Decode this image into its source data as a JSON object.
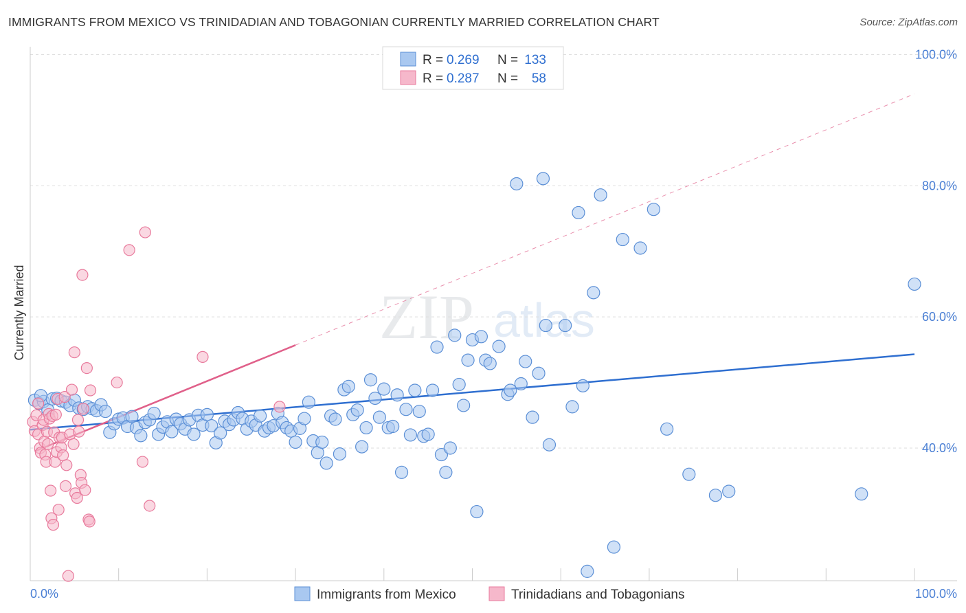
{
  "header": {
    "title": "IMMIGRANTS FROM MEXICO VS TRINIDADIAN AND TOBAGONIAN CURRENTLY MARRIED CORRELATION CHART",
    "source": "Source: ZipAtlas.com"
  },
  "watermark": {
    "zip": "ZIP",
    "atlas": "atlas"
  },
  "legend": {
    "r_label": "R =",
    "n_label": "N =",
    "rows": [
      {
        "r": "0.269",
        "n": "133"
      },
      {
        "r": "0.287",
        "n": "58"
      }
    ]
  },
  "colors": {
    "blue_fill": "#a9c8f0",
    "blue_stroke": "#5b8fd6",
    "blue_line": "#2f6fd0",
    "pink_fill": "#f6b8cb",
    "pink_stroke": "#e87a9c",
    "pink_line": "#e0608a",
    "tick_text": "#4a7fd4",
    "grid": "#dddddd"
  },
  "chart_data": {
    "type": "scatter",
    "title": "IMMIGRANTS FROM MEXICO VS TRINIDADIAN AND TOBAGONIAN CURRENTLY MARRIED CORRELATION CHART",
    "xlabel": "",
    "ylabel": "Currently Married",
    "xlim": [
      0,
      100
    ],
    "ylim": [
      20,
      102
    ],
    "x_tick_labels": [
      "0.0%",
      "100.0%"
    ],
    "y_ticks": [
      40,
      60,
      80,
      100
    ],
    "y_tick_labels": [
      "40.0%",
      "60.0%",
      "80.0%",
      "100.0%"
    ],
    "grid": true,
    "legend_position": "top-center",
    "series": [
      {
        "name": "Immigrants from Mexico",
        "color": "#a9c8f0",
        "r": 0.269,
        "n": 133,
        "trend": {
          "x": [
            0,
            100
          ],
          "y": [
            42.8,
            54.3
          ],
          "style": "solid"
        },
        "points": [
          [
            0.5,
            47.3
          ],
          [
            1,
            46.8
          ],
          [
            1.5,
            47.1
          ],
          [
            2,
            45.8
          ],
          [
            2.5,
            47.5
          ],
          [
            3,
            47.6
          ],
          [
            3.5,
            47.2
          ],
          [
            4,
            47.0
          ],
          [
            4.5,
            46.5
          ],
          [
            5,
            47.3
          ],
          [
            5.5,
            46.1
          ],
          [
            6,
            45.9
          ],
          [
            6.5,
            46.3
          ],
          [
            7,
            46.0
          ],
          [
            7.5,
            45.7
          ],
          [
            8,
            46.6
          ],
          [
            8.5,
            45.6
          ],
          [
            9,
            42.4
          ],
          [
            9.5,
            43.7
          ],
          [
            10,
            44.4
          ],
          [
            10.5,
            44.6
          ],
          [
            11,
            43.3
          ],
          [
            11.5,
            44.8
          ],
          [
            12,
            43.1
          ],
          [
            12.5,
            41.9
          ],
          [
            13,
            43.9
          ],
          [
            13.5,
            44.3
          ],
          [
            14,
            45.3
          ],
          [
            14.5,
            42.1
          ],
          [
            15,
            43.2
          ],
          [
            15.5,
            44.0
          ],
          [
            16,
            42.5
          ],
          [
            16.5,
            44.4
          ],
          [
            17,
            43.7
          ],
          [
            17.5,
            42.9
          ],
          [
            18,
            44.3
          ],
          [
            18.5,
            42.1
          ],
          [
            19,
            45.0
          ],
          [
            19.5,
            43.5
          ],
          [
            20,
            45.1
          ],
          [
            20.5,
            43.4
          ],
          [
            21,
            40.8
          ],
          [
            21.5,
            42.3
          ],
          [
            22,
            44.1
          ],
          [
            22.5,
            43.6
          ],
          [
            23,
            44.3
          ],
          [
            23.5,
            45.4
          ],
          [
            24,
            44.5
          ],
          [
            24.5,
            42.9
          ],
          [
            25,
            44.1
          ],
          [
            25.5,
            43.5
          ],
          [
            26,
            44.9
          ],
          [
            26.5,
            42.6
          ],
          [
            27,
            43.1
          ],
          [
            27.5,
            43.4
          ],
          [
            28,
            45.3
          ],
          [
            28.5,
            43.9
          ],
          [
            29,
            43.1
          ],
          [
            29.5,
            42.6
          ],
          [
            30,
            40.9
          ],
          [
            30.5,
            43.0
          ],
          [
            31,
            44.5
          ],
          [
            31.5,
            47.0
          ],
          [
            32,
            41.1
          ],
          [
            32.5,
            39.3
          ],
          [
            33,
            40.9
          ],
          [
            33.5,
            37.7
          ],
          [
            34,
            44.9
          ],
          [
            34.5,
            44.4
          ],
          [
            35,
            39.1
          ],
          [
            35.5,
            48.9
          ],
          [
            36,
            49.4
          ],
          [
            36.5,
            45.1
          ],
          [
            37,
            45.8
          ],
          [
            37.5,
            40.2
          ],
          [
            38,
            43.1
          ],
          [
            38.5,
            50.4
          ],
          [
            39,
            47.6
          ],
          [
            39.5,
            44.7
          ],
          [
            40,
            49.0
          ],
          [
            40.5,
            43.1
          ],
          [
            41,
            43.3
          ],
          [
            41.5,
            48.1
          ],
          [
            42,
            36.3
          ],
          [
            42.5,
            45.9
          ],
          [
            43,
            42.0
          ],
          [
            43.5,
            48.8
          ],
          [
            44,
            45.6
          ],
          [
            44.5,
            41.8
          ],
          [
            45,
            42.1
          ],
          [
            45.5,
            48.8
          ],
          [
            46,
            55.4
          ],
          [
            46.5,
            39.0
          ],
          [
            47,
            36.3
          ],
          [
            47.5,
            40.0
          ],
          [
            48,
            57.2
          ],
          [
            48.5,
            49.7
          ],
          [
            49,
            46.5
          ],
          [
            49.5,
            53.4
          ],
          [
            50,
            56.5
          ],
          [
            50.5,
            30.3
          ],
          [
            51,
            57.0
          ],
          [
            51.5,
            53.4
          ],
          [
            52,
            52.9
          ],
          [
            53,
            55.5
          ],
          [
            54,
            48.2
          ],
          [
            54.3,
            48.8
          ],
          [
            55,
            80.3
          ],
          [
            55.5,
            49.8
          ],
          [
            56,
            53.2
          ],
          [
            56.8,
            44.7
          ],
          [
            57.5,
            51.4
          ],
          [
            58,
            81.1
          ],
          [
            58.3,
            58.7
          ],
          [
            58.7,
            40.5
          ],
          [
            60.5,
            58.7
          ],
          [
            61.3,
            46.3
          ],
          [
            62,
            75.9
          ],
          [
            62.5,
            49.5
          ],
          [
            63,
            21.2
          ],
          [
            63.7,
            63.7
          ],
          [
            64.5,
            78.6
          ],
          [
            66,
            24.9
          ],
          [
            67,
            71.8
          ],
          [
            69,
            70.5
          ],
          [
            70.5,
            76.4
          ],
          [
            72,
            42.9
          ],
          [
            74.5,
            36.0
          ],
          [
            77.5,
            32.8
          ],
          [
            79,
            33.4
          ],
          [
            94,
            33.0
          ],
          [
            100,
            65.0
          ],
          [
            1.2,
            48.0
          ]
        ]
      },
      {
        "name": "Trinidadians and Tobagonians",
        "color": "#f6b8cb",
        "r": 0.287,
        "n": 58,
        "trend": {
          "x": [
            0.5,
            30
          ],
          "y": [
            39.5,
            55.7
          ],
          "style": "solid"
        },
        "trend_extension": {
          "x": [
            30,
            100
          ],
          "y": [
            55.7,
            94.0
          ],
          "style": "dashed"
        },
        "points": [
          [
            0.3,
            44.0
          ],
          [
            0.5,
            42.6
          ],
          [
            0.7,
            45.0
          ],
          [
            0.9,
            42.1
          ],
          [
            1.1,
            40.0
          ],
          [
            1.2,
            39.3
          ],
          [
            1.4,
            43.5
          ],
          [
            1.5,
            44.3
          ],
          [
            1.6,
            41.0
          ],
          [
            1.7,
            39.0
          ],
          [
            1.8,
            37.9
          ],
          [
            1.9,
            42.5
          ],
          [
            2.0,
            40.6
          ],
          [
            2.1,
            45.2
          ],
          [
            2.2,
            44.5
          ],
          [
            2.3,
            33.5
          ],
          [
            2.4,
            29.3
          ],
          [
            2.5,
            44.9
          ],
          [
            2.6,
            28.3
          ],
          [
            2.7,
            42.4
          ],
          [
            2.8,
            37.9
          ],
          [
            2.9,
            45.1
          ],
          [
            3.0,
            39.4
          ],
          [
            3.1,
            47.5
          ],
          [
            3.2,
            30.6
          ],
          [
            3.3,
            41.6
          ],
          [
            3.5,
            40.1
          ],
          [
            3.6,
            41.6
          ],
          [
            3.7,
            38.9
          ],
          [
            3.9,
            47.8
          ],
          [
            4.0,
            34.2
          ],
          [
            4.1,
            37.4
          ],
          [
            4.3,
            20.5
          ],
          [
            4.5,
            42.1
          ],
          [
            4.7,
            48.9
          ],
          [
            4.9,
            40.6
          ],
          [
            5.0,
            54.6
          ],
          [
            5.1,
            33.1
          ],
          [
            5.3,
            32.4
          ],
          [
            5.4,
            44.3
          ],
          [
            5.5,
            42.5
          ],
          [
            5.7,
            35.9
          ],
          [
            5.8,
            34.7
          ],
          [
            5.9,
            66.4
          ],
          [
            6.0,
            46.0
          ],
          [
            6.2,
            33.6
          ],
          [
            6.4,
            52.2
          ],
          [
            6.6,
            29.1
          ],
          [
            6.7,
            28.8
          ],
          [
            6.8,
            48.8
          ],
          [
            9.8,
            50.0
          ],
          [
            11.2,
            70.2
          ],
          [
            12.7,
            37.9
          ],
          [
            13.0,
            72.9
          ],
          [
            13.5,
            31.2
          ],
          [
            19.5,
            53.9
          ],
          [
            28.2,
            46.3
          ],
          [
            0.9,
            46.8
          ]
        ]
      }
    ]
  },
  "bottom_legend": {
    "items": [
      {
        "label": "Immigrants from Mexico"
      },
      {
        "label": "Trinidadians and Tobagonians"
      }
    ]
  }
}
